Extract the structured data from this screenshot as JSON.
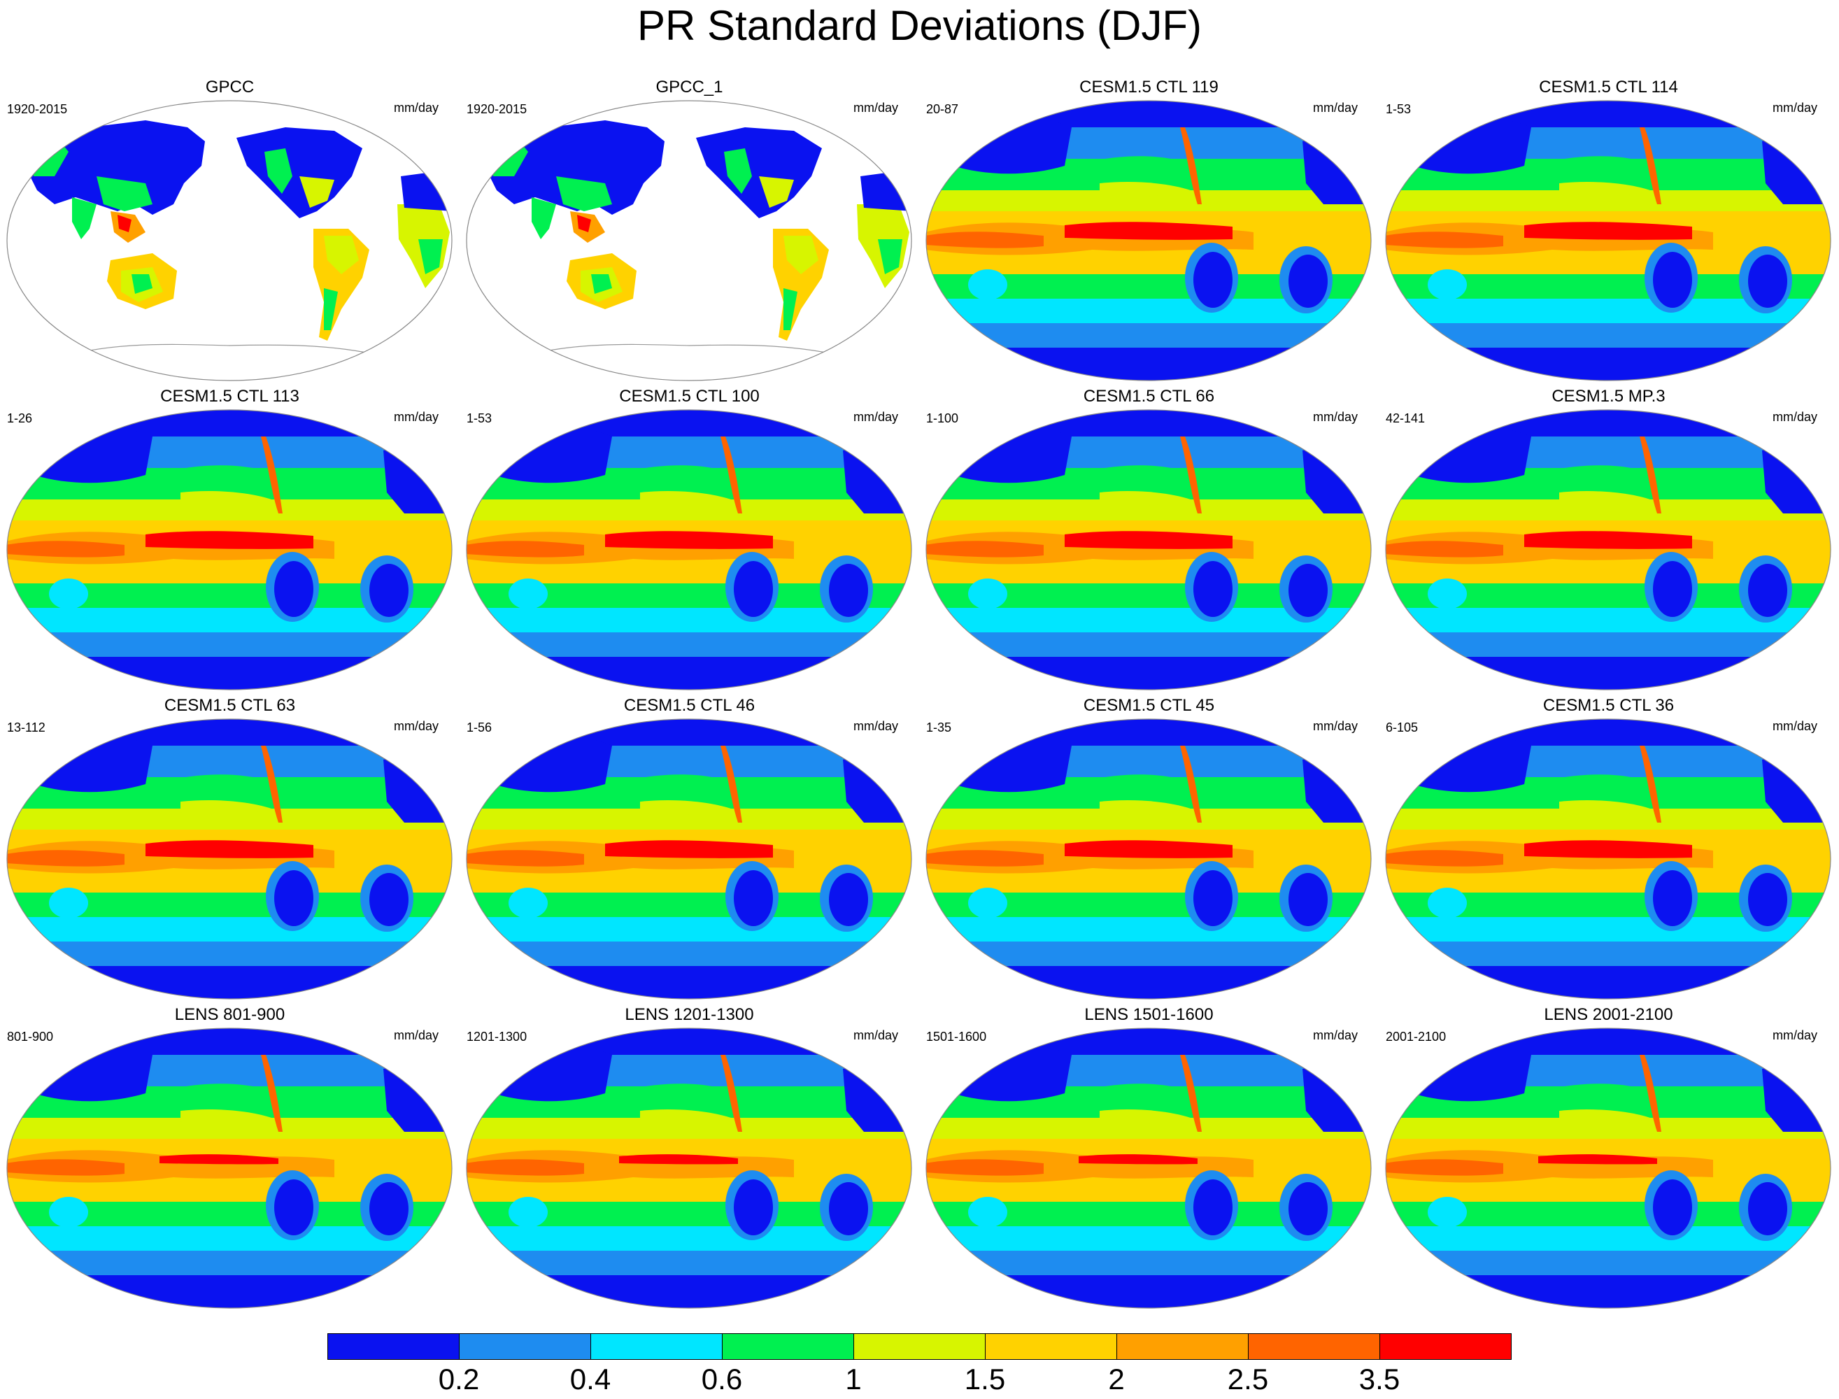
{
  "title": "PR Standard Deviations (DJF)",
  "units": "mm/day",
  "panels": [
    {
      "title": "GPCC",
      "period": "1920-2015",
      "kind": "obs"
    },
    {
      "title": "GPCC_1",
      "period": "1920-2015",
      "kind": "obs"
    },
    {
      "title": "CESM1.5 CTL 119",
      "period": "20-87",
      "kind": "model"
    },
    {
      "title": "CESM1.5 CTL 114",
      "period": "1-53",
      "kind": "model"
    },
    {
      "title": "CESM1.5 CTL 113",
      "period": "1-26",
      "kind": "model"
    },
    {
      "title": "CESM1.5 CTL 100",
      "period": "1-53",
      "kind": "model"
    },
    {
      "title": "CESM1.5 CTL 66",
      "period": "1-100",
      "kind": "model"
    },
    {
      "title": "CESM1.5 MP.3",
      "period": "42-141",
      "kind": "model"
    },
    {
      "title": "CESM1.5 CTL 63",
      "period": "13-112",
      "kind": "model"
    },
    {
      "title": "CESM1.5 CTL 46",
      "period": "1-56",
      "kind": "model"
    },
    {
      "title": "CESM1.5 CTL 45",
      "period": "1-35",
      "kind": "model"
    },
    {
      "title": "CESM1.5 CTL 36",
      "period": "6-105",
      "kind": "model"
    },
    {
      "title": "LENS 801-900",
      "period": "801-900",
      "kind": "model"
    },
    {
      "title": "LENS 1201-1300",
      "period": "1201-1300",
      "kind": "model"
    },
    {
      "title": "LENS 1501-1600",
      "period": "1501-1600",
      "kind": "model"
    },
    {
      "title": "LENS 2001-2100",
      "period": "2001-2100",
      "kind": "model"
    }
  ],
  "colorbar": {
    "colors": [
      "#0a12f0",
      "#1e8cf0",
      "#00e6ff",
      "#00f050",
      "#d7f500",
      "#ffd200",
      "#ffa000",
      "#ff6400",
      "#ff0000"
    ],
    "labels": [
      "0.2",
      "0.4",
      "0.6",
      "1",
      "1.5",
      "2",
      "2.5",
      "3.5"
    ]
  }
}
